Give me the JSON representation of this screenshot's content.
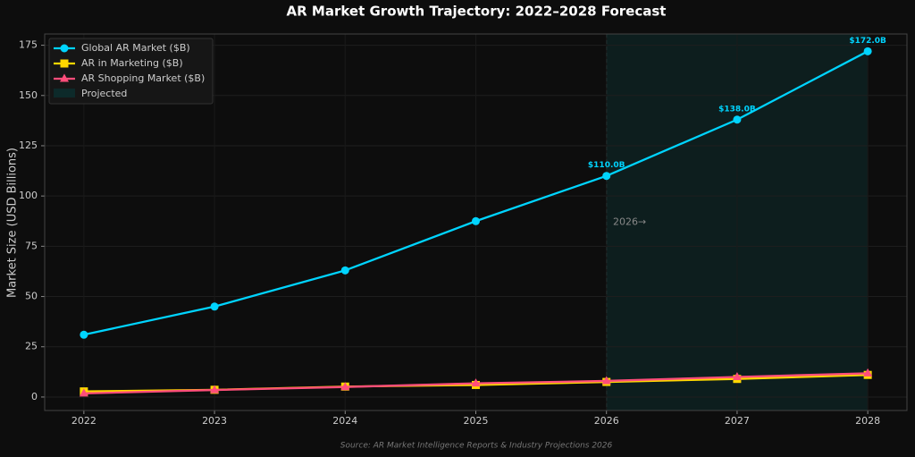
{
  "chart_data": {
    "type": "line",
    "title": "AR Market Growth Trajectory: 2022–2028 Forecast",
    "y_label": "Market Size (USD Billions)",
    "source": "Source: AR Market Intelligence Reports & Industry Projections 2026",
    "x": [
      2022,
      2023,
      2024,
      2025,
      2026,
      2027,
      2028
    ],
    "xlim": [
      2021.7,
      2028.3
    ],
    "xticks": [
      2022,
      2023,
      2024,
      2025,
      2026,
      2027,
      2028
    ],
    "ylim": [
      -6.7,
      180.6
    ],
    "yticks": [
      0,
      25,
      50,
      75,
      100,
      125,
      150,
      175
    ],
    "grid": true,
    "legend": "upper left",
    "series": [
      {
        "name": "Global AR Market ($B)",
        "color": "#00d4ff",
        "marker": "circle",
        "values": [
          31,
          45,
          63,
          87.5,
          110,
          138,
          172
        ],
        "value_labels": [
          null,
          null,
          null,
          null,
          "$110.0B",
          "$138.0B",
          "$172.0B"
        ]
      },
      {
        "name": "AR in Marketing ($B)",
        "color": "#ffd700",
        "marker": "square",
        "values": [
          2.8,
          3.6,
          5.2,
          6.0,
          7.5,
          9.0,
          11.0
        ]
      },
      {
        "name": "AR Shopping Market ($B)",
        "color": "#ff4d7a",
        "marker": "triangle",
        "values": [
          1.8,
          3.5,
          5.0,
          6.8,
          8.0,
          10.0,
          11.8
        ]
      }
    ],
    "projected": {
      "label": "Projected",
      "start": 2026,
      "end": 2028,
      "color": "#0d2a2a"
    },
    "annotation": {
      "text": "2026→",
      "x": 2026.05,
      "y": 87
    }
  }
}
